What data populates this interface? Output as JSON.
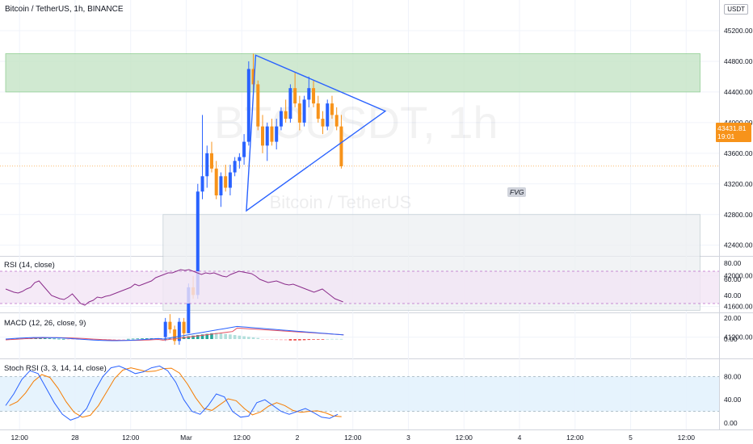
{
  "header": {
    "title": "Bitcoin / TetherUS, 1h, BINANCE",
    "currency_button": "USDT",
    "price_top_partial": "4"
  },
  "watermark": {
    "ticker": "BTCUSDT, 1h",
    "name": "Bitcoin / TetherUS"
  },
  "colors": {
    "up": "#2962ff",
    "down": "#f7931a",
    "grid": "#f0f3fa",
    "rsi": "#8b2d8b",
    "macd": "#2962ff",
    "signal": "#e65161",
    "stoch_k": "#2962ff",
    "stoch_d": "#f57c00",
    "zone_green": "#c8e6c9",
    "zone_fvg": "#eceff1"
  },
  "price_tag": {
    "price": "43431.81",
    "countdown": "19:01"
  },
  "fvg_label": "FVG",
  "price_axis": [
    "45200.00",
    "44800.00",
    "44400.00",
    "44000.00",
    "43600.00",
    "43200.00",
    "42800.00",
    "42400.00",
    "42000.00",
    "41600.00",
    "41200.00"
  ],
  "time_axis": [
    {
      "label": "12:00",
      "t": 3
    },
    {
      "label": "28",
      "t": 15
    },
    {
      "label": "12:00",
      "t": 27
    },
    {
      "label": "Mar",
      "t": 39
    },
    {
      "label": "12:00",
      "t": 51
    },
    {
      "label": "2",
      "t": 63
    },
    {
      "label": "12:00",
      "t": 75
    },
    {
      "label": "3",
      "t": 87
    },
    {
      "label": "12:00",
      "t": 99
    },
    {
      "label": "4",
      "t": 111
    },
    {
      "label": "12:00",
      "t": 123
    },
    {
      "label": "5",
      "t": 135
    },
    {
      "label": "12:00",
      "t": 147
    }
  ],
  "indicators": {
    "rsi": {
      "title": "RSI (14, close)",
      "axis": [
        "80.00",
        "60.00",
        "40.00"
      ],
      "band": [
        30,
        70
      ]
    },
    "macd": {
      "title": "MACD (12, 26, close, 9)",
      "axis": [
        "20.00",
        "0.00"
      ]
    },
    "stoch": {
      "title": "Stoch RSI (3, 3, 14, 14, close)",
      "axis": [
        "80.00",
        "40.00",
        "0.00"
      ],
      "band": [
        20,
        80
      ]
    }
  },
  "chart_data": {
    "type": "candlestick",
    "title": "Bitcoin / TetherUS, 1h, BINANCE",
    "y_range": [
      41000,
      45400
    ],
    "zones": [
      {
        "label": "",
        "t0": 0,
        "t1": 150,
        "low": 44400,
        "high": 44900
      },
      {
        "label": "FVG",
        "t0": 34,
        "t1": 150,
        "low": 41550,
        "high": 42800
      }
    ],
    "current_price": 43431.81,
    "triangle": [
      [
        52,
        42850
      ],
      [
        54,
        44880
      ],
      [
        82,
        44150
      ]
    ],
    "candles": [
      [
        0,
        [
          0,
          0,
          0,
          0
        ]
      ],
      [
        34.5,
        [
          41200,
          41450,
          41150,
          41400
        ]
      ],
      [
        35.5,
        [
          41400,
          41500,
          41250,
          41300
        ]
      ],
      [
        36.5,
        [
          41300,
          41350,
          41100,
          41150
        ]
      ],
      [
        37.5,
        [
          41150,
          41450,
          41100,
          41400
        ]
      ],
      [
        38.5,
        [
          41400,
          41450,
          41200,
          41250
        ]
      ],
      [
        39.5,
        [
          41250,
          41900,
          41250,
          41850
        ]
      ],
      [
        40.5,
        [
          41850,
          42000,
          41700,
          41750
        ]
      ],
      [
        41.5,
        [
          41750,
          43200,
          41700,
          43100
        ]
      ],
      [
        42.5,
        [
          43100,
          44100,
          43000,
          43300
        ]
      ],
      [
        43.5,
        [
          43300,
          43700,
          43150,
          43600
        ]
      ],
      [
        44.5,
        [
          43600,
          43750,
          43350,
          43400
        ]
      ],
      [
        45.5,
        [
          43400,
          43500,
          43000,
          43050
        ]
      ],
      [
        46.5,
        [
          43050,
          43350,
          42900,
          43300
        ]
      ],
      [
        47.5,
        [
          43300,
          43450,
          43100,
          43150
        ]
      ],
      [
        48.5,
        [
          43150,
          43450,
          43050,
          43350
        ]
      ],
      [
        49.5,
        [
          43350,
          43550,
          43300,
          43500
        ]
      ],
      [
        50.5,
        [
          43500,
          43600,
          43400,
          43550
        ]
      ],
      [
        51.5,
        [
          43550,
          43850,
          43450,
          43750
        ]
      ],
      [
        52.5,
        [
          43750,
          44800,
          43700,
          44700
        ]
      ],
      [
        53.5,
        [
          44700,
          44900,
          44400,
          44500
        ]
      ],
      [
        54.5,
        [
          44500,
          44550,
          43900,
          43950
        ]
      ],
      [
        55.5,
        [
          43950,
          44100,
          43600,
          43700
        ]
      ],
      [
        56.5,
        [
          43700,
          44000,
          43500,
          43950
        ]
      ],
      [
        57.5,
        [
          43950,
          44050,
          43700,
          43750
        ]
      ],
      [
        58.5,
        [
          43750,
          44050,
          43650,
          43950
        ]
      ],
      [
        59.5,
        [
          43950,
          44200,
          43900,
          44150
        ]
      ],
      [
        60.5,
        [
          44150,
          44300,
          44000,
          44050
        ]
      ],
      [
        61.5,
        [
          44050,
          44500,
          44000,
          44450
        ]
      ],
      [
        62.5,
        [
          44450,
          44650,
          44200,
          44250
        ]
      ],
      [
        63.5,
        [
          44250,
          44350,
          43900,
          44000
        ]
      ],
      [
        64.5,
        [
          44000,
          44350,
          43950,
          44300
        ]
      ],
      [
        65.5,
        [
          44300,
          44600,
          44200,
          44450
        ]
      ],
      [
        66.5,
        [
          44450,
          44550,
          44200,
          44250
        ]
      ],
      [
        67.5,
        [
          44250,
          44350,
          44000,
          44050
        ]
      ],
      [
        68.5,
        [
          44050,
          44150,
          43850,
          43950
        ]
      ],
      [
        69.5,
        [
          43950,
          44300,
          43900,
          44250
        ]
      ],
      [
        70.5,
        [
          44250,
          44350,
          44050,
          44100
        ]
      ],
      [
        71.5,
        [
          44100,
          44200,
          43900,
          43950
        ]
      ],
      [
        72.5,
        [
          43950,
          44100,
          43400,
          43430
        ]
      ]
    ]
  }
}
